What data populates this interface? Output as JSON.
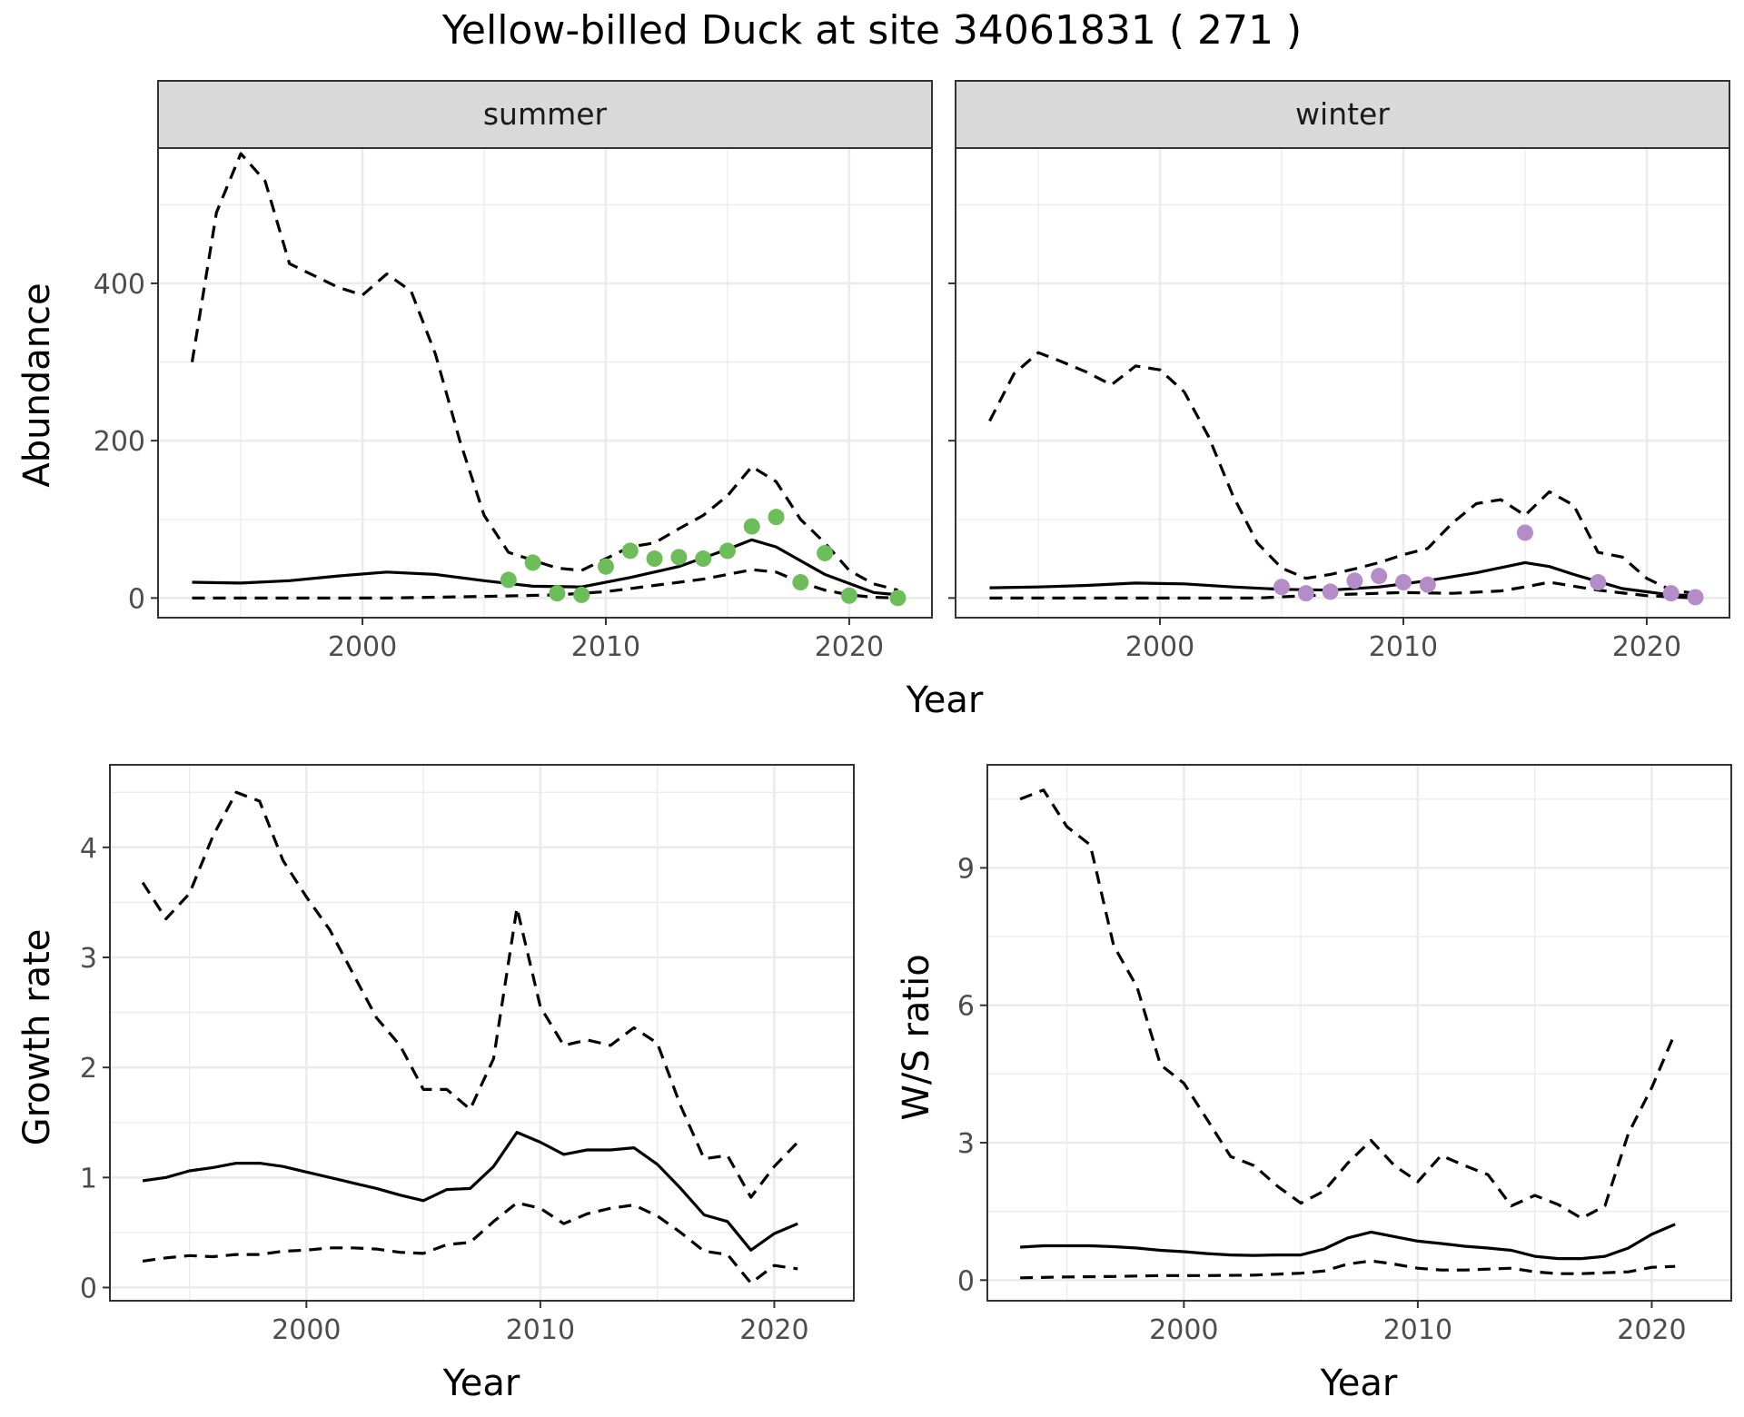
{
  "title": "Yellow-billed Duck at site 34061831 ( 271 )",
  "colors": {
    "summer_points": "#6DBE5A",
    "winter_points": "#B48CC8",
    "strip_fill": "#D9D9D9",
    "grid": "#EBEBEB",
    "line": "#000000"
  },
  "chart_data": [
    {
      "type": "line",
      "panel": "summer",
      "strip_label": "summer",
      "xlabel": "Year",
      "ylabel": "Abundance",
      "xlim": [
        1991.6,
        2023.4
      ],
      "ylim": [
        -25,
        572
      ],
      "x_ticks": [
        2000,
        2010,
        2020
      ],
      "x_tick_labels": [
        "2000",
        "2010",
        "2020"
      ],
      "y_ticks": [
        0,
        200,
        400
      ],
      "y_tick_labels": [
        "0",
        "200",
        "400"
      ],
      "series": [
        {
          "name": "estimate",
          "style": "solid",
          "x": [
            1993,
            1995,
            1997,
            1999,
            2001,
            2003,
            2005,
            2007,
            2009,
            2011,
            2013,
            2015,
            2016,
            2017,
            2019,
            2021,
            2022
          ],
          "y": [
            20,
            19,
            22,
            28,
            33,
            30,
            22,
            15,
            14,
            26,
            40,
            62,
            74,
            65,
            30,
            7,
            4
          ]
        },
        {
          "name": "upper",
          "style": "dashed",
          "x": [
            1993,
            1994,
            1995,
            1996,
            1997,
            1998,
            1999,
            2000,
            2001,
            2002,
            2003,
            2004,
            2005,
            2006,
            2007,
            2008,
            2009,
            2010,
            2011,
            2012,
            2013,
            2014,
            2015,
            2016,
            2017,
            2018,
            2019,
            2020,
            2021,
            2022
          ],
          "y": [
            300,
            490,
            565,
            530,
            425,
            410,
            395,
            385,
            412,
            390,
            310,
            200,
            105,
            58,
            48,
            38,
            35,
            50,
            65,
            70,
            88,
            105,
            130,
            167,
            148,
            100,
            70,
            35,
            18,
            10
          ]
        },
        {
          "name": "lower",
          "style": "dashed",
          "x": [
            1993,
            1997,
            2001,
            2005,
            2008,
            2010,
            2012,
            2014,
            2015,
            2016,
            2017,
            2018,
            2019,
            2020,
            2021,
            2022
          ],
          "y": [
            0,
            0,
            0,
            2,
            4,
            8,
            16,
            24,
            30,
            36,
            33,
            20,
            10,
            4,
            1,
            0
          ]
        }
      ],
      "points": {
        "x": [
          2006,
          2007,
          2008,
          2009,
          2010,
          2011,
          2012,
          2013,
          2014,
          2015,
          2016,
          2017,
          2018,
          2019,
          2020,
          2022
        ],
        "y": [
          23,
          45,
          6,
          4,
          40,
          60,
          50,
          52,
          50,
          60,
          91,
          103,
          20,
          57,
          3,
          0
        ]
      }
    },
    {
      "type": "line",
      "panel": "winter",
      "strip_label": "winter",
      "xlabel": "Year",
      "ylabel": "Abundance",
      "xlim": [
        1991.6,
        2023.4
      ],
      "ylim": [
        -25,
        572
      ],
      "x_ticks": [
        2000,
        2010,
        2020
      ],
      "x_tick_labels": [
        "2000",
        "2010",
        "2020"
      ],
      "y_ticks": [
        0,
        200,
        400
      ],
      "series": [
        {
          "name": "estimate",
          "style": "solid",
          "x": [
            1993,
            1995,
            1997,
            1999,
            2001,
            2003,
            2005,
            2007,
            2009,
            2011,
            2013,
            2015,
            2016,
            2017,
            2019,
            2021,
            2022
          ],
          "y": [
            13,
            14,
            16,
            19,
            18,
            14,
            11,
            10,
            14,
            22,
            32,
            45,
            40,
            30,
            12,
            4,
            3
          ]
        },
        {
          "name": "upper",
          "style": "dashed",
          "x": [
            1993,
            1994,
            1995,
            1996,
            1997,
            1998,
            1999,
            2000,
            2001,
            2002,
            2003,
            2004,
            2005,
            2006,
            2007,
            2008,
            2009,
            2010,
            2011,
            2012,
            2013,
            2014,
            2015,
            2016,
            2017,
            2018,
            2019,
            2020,
            2021,
            2022
          ],
          "y": [
            225,
            285,
            312,
            300,
            287,
            271,
            295,
            290,
            262,
            205,
            130,
            70,
            38,
            25,
            30,
            37,
            45,
            55,
            63,
            95,
            120,
            125,
            105,
            135,
            118,
            58,
            52,
            25,
            10,
            6
          ]
        },
        {
          "name": "lower",
          "style": "dashed",
          "x": [
            1993,
            1997,
            2001,
            2004,
            2006,
            2008,
            2010,
            2012,
            2014,
            2015,
            2016,
            2018,
            2020,
            2022
          ],
          "y": [
            0,
            0,
            0,
            0,
            3,
            5,
            7,
            6,
            9,
            14,
            20,
            10,
            3,
            0
          ]
        }
      ],
      "points": {
        "x": [
          2005,
          2006,
          2007,
          2008,
          2009,
          2010,
          2011,
          2015,
          2018,
          2021,
          2022
        ],
        "y": [
          14,
          6,
          8,
          22,
          28,
          20,
          17,
          83,
          20,
          6,
          1
        ]
      }
    },
    {
      "type": "line",
      "panel": "growth",
      "xlabel": "Year",
      "ylabel": "Growth rate",
      "xlim": [
        1991.6,
        2023.4
      ],
      "ylim": [
        -0.12,
        4.75
      ],
      "x_ticks": [
        2000,
        2010,
        2020
      ],
      "x_tick_labels": [
        "2000",
        "2010",
        "2020"
      ],
      "y_ticks": [
        0,
        1,
        2,
        3,
        4
      ],
      "y_tick_labels": [
        "0",
        "1",
        "2",
        "3",
        "4"
      ],
      "series": [
        {
          "name": "estimate",
          "style": "solid",
          "x": [
            1993,
            1994,
            1995,
            1996,
            1997,
            1998,
            1999,
            2000,
            2001,
            2002,
            2003,
            2004,
            2005,
            2006,
            2007,
            2008,
            2009,
            2010,
            2011,
            2012,
            2013,
            2014,
            2015,
            2016,
            2017,
            2018,
            2019,
            2020,
            2021
          ],
          "y": [
            0.97,
            1.0,
            1.06,
            1.09,
            1.13,
            1.13,
            1.1,
            1.05,
            1.0,
            0.95,
            0.9,
            0.84,
            0.79,
            0.89,
            0.9,
            1.1,
            1.41,
            1.32,
            1.21,
            1.25,
            1.25,
            1.27,
            1.12,
            0.9,
            0.66,
            0.6,
            0.34,
            0.49,
            0.58
          ]
        },
        {
          "name": "upper",
          "style": "dashed",
          "x": [
            1993,
            1994,
            1995,
            1996,
            1997,
            1998,
            1999,
            2000,
            2001,
            2002,
            2003,
            2004,
            2005,
            2006,
            2007,
            2008,
            2009,
            2010,
            2011,
            2012,
            2013,
            2014,
            2015,
            2016,
            2017,
            2018,
            2019,
            2020,
            2021
          ],
          "y": [
            3.68,
            3.35,
            3.58,
            4.1,
            4.5,
            4.42,
            3.88,
            3.55,
            3.25,
            2.85,
            2.45,
            2.2,
            1.8,
            1.8,
            1.62,
            2.08,
            3.45,
            2.55,
            2.2,
            2.25,
            2.2,
            2.36,
            2.22,
            1.65,
            1.17,
            1.2,
            0.82,
            1.1,
            1.32
          ]
        },
        {
          "name": "lower",
          "style": "dashed",
          "x": [
            1993,
            1994,
            1995,
            1996,
            1997,
            1998,
            1999,
            2000,
            2001,
            2002,
            2003,
            2004,
            2005,
            2006,
            2007,
            2008,
            2009,
            2010,
            2011,
            2012,
            2013,
            2014,
            2015,
            2016,
            2017,
            2018,
            2019,
            2020,
            2021
          ],
          "y": [
            0.24,
            0.27,
            0.29,
            0.28,
            0.3,
            0.3,
            0.33,
            0.34,
            0.36,
            0.36,
            0.35,
            0.32,
            0.31,
            0.39,
            0.41,
            0.6,
            0.77,
            0.72,
            0.58,
            0.67,
            0.72,
            0.75,
            0.65,
            0.5,
            0.33,
            0.3,
            0.04,
            0.2,
            0.17
          ]
        }
      ]
    },
    {
      "type": "line",
      "panel": "ratio",
      "xlabel": "Year",
      "ylabel": "W/S ratio",
      "xlim": [
        1991.6,
        2023.4
      ],
      "ylim": [
        -0.45,
        11.25
      ],
      "x_ticks": [
        2000,
        2010,
        2020
      ],
      "x_tick_labels": [
        "2000",
        "2010",
        "2020"
      ],
      "y_ticks": [
        0,
        3,
        6,
        9
      ],
      "y_tick_labels": [
        "0",
        "3",
        "6",
        "9"
      ],
      "series": [
        {
          "name": "estimate",
          "style": "solid",
          "x": [
            1993,
            1994,
            1995,
            1996,
            1997,
            1998,
            1999,
            2000,
            2001,
            2002,
            2003,
            2004,
            2005,
            2006,
            2007,
            2008,
            2009,
            2010,
            2011,
            2012,
            2013,
            2014,
            2015,
            2016,
            2017,
            2018,
            2019,
            2020,
            2021
          ],
          "y": [
            0.72,
            0.75,
            0.75,
            0.75,
            0.73,
            0.7,
            0.65,
            0.62,
            0.58,
            0.55,
            0.54,
            0.55,
            0.55,
            0.68,
            0.92,
            1.05,
            0.95,
            0.85,
            0.8,
            0.74,
            0.7,
            0.65,
            0.52,
            0.47,
            0.47,
            0.52,
            0.7,
            1.0,
            1.22
          ]
        },
        {
          "name": "upper",
          "style": "dashed",
          "x": [
            1993,
            1994,
            1995,
            1996,
            1997,
            1998,
            1999,
            2000,
            2001,
            2002,
            2003,
            2004,
            2005,
            2006,
            2007,
            2008,
            2009,
            2010,
            2011,
            2012,
            2013,
            2014,
            2015,
            2016,
            2017,
            2018,
            2019,
            2020,
            2021
          ],
          "y": [
            10.5,
            10.7,
            9.9,
            9.5,
            7.3,
            6.4,
            4.7,
            4.3,
            3.5,
            2.7,
            2.5,
            2.05,
            1.68,
            1.95,
            2.55,
            3.05,
            2.5,
            2.15,
            2.72,
            2.5,
            2.3,
            1.62,
            1.85,
            1.65,
            1.35,
            1.62,
            3.2,
            4.2,
            5.4
          ]
        },
        {
          "name": "lower",
          "style": "dashed",
          "x": [
            1993,
            1995,
            1997,
            1999,
            2001,
            2003,
            2005,
            2006,
            2007,
            2008,
            2009,
            2010,
            2011,
            2012,
            2013,
            2014,
            2015,
            2016,
            2017,
            2018,
            2019,
            2020,
            2021
          ],
          "y": [
            0.05,
            0.07,
            0.08,
            0.1,
            0.1,
            0.11,
            0.15,
            0.2,
            0.35,
            0.42,
            0.35,
            0.26,
            0.22,
            0.22,
            0.24,
            0.26,
            0.18,
            0.14,
            0.14,
            0.16,
            0.18,
            0.28,
            0.3
          ]
        }
      ]
    }
  ]
}
